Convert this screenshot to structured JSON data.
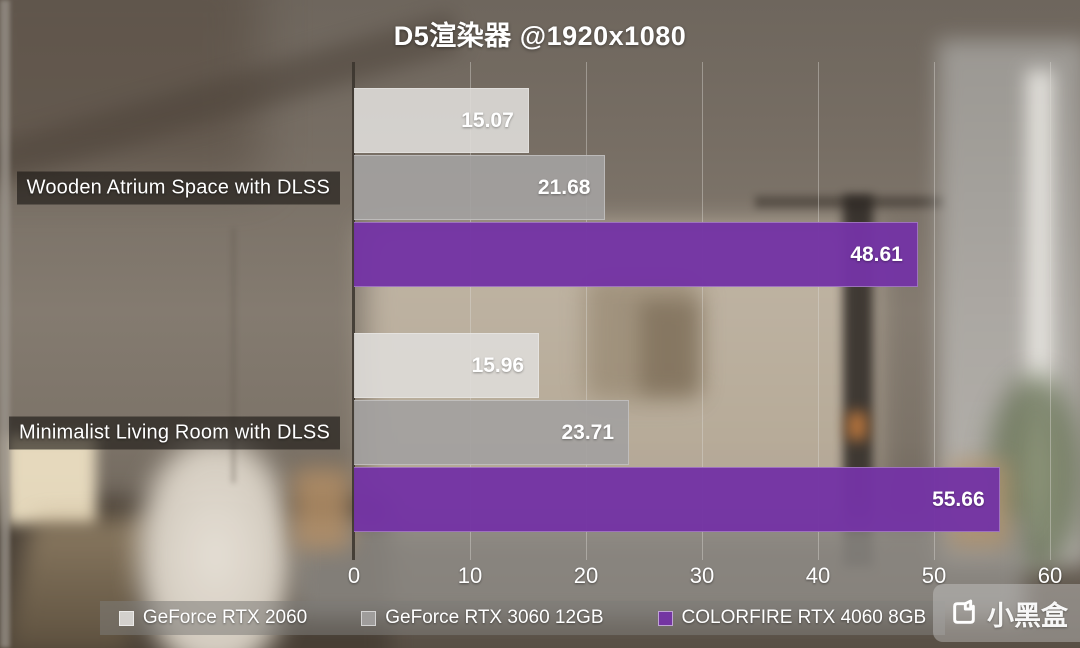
{
  "title": "D5渲染器 @1920x1080",
  "chart_data": {
    "type": "bar",
    "orientation": "horizontal",
    "title": "D5渲染器 @1920x1080",
    "categories": [
      "Wooden Atrium Space with DLSS",
      "Minimalist Living Room with DLSS"
    ],
    "series": [
      {
        "name": "GeForce RTX 2060",
        "color": "rgba(222,219,216,0.90)",
        "values": [
          15.07,
          15.96
        ]
      },
      {
        "name": "GeForce RTX 3060 12GB",
        "color": "rgba(163,161,159,0.92)",
        "values": [
          21.68,
          23.71
        ]
      },
      {
        "name": "COLORFIRE RTX 4060 8GB",
        "color": "rgba(116,52,164,0.97)",
        "values": [
          48.61,
          55.66
        ]
      }
    ],
    "xlim": [
      0,
      60
    ],
    "x_ticks": [
      0,
      10,
      20,
      30,
      40,
      50,
      60
    ],
    "grid": true,
    "legend_position": "bottom",
    "value_label_format": "2-decimals",
    "accent_color": "#7434a4"
  },
  "watermark": {
    "text": "小黑盒",
    "icon": "heybox-logo-icon",
    "color": "#ffffff"
  }
}
